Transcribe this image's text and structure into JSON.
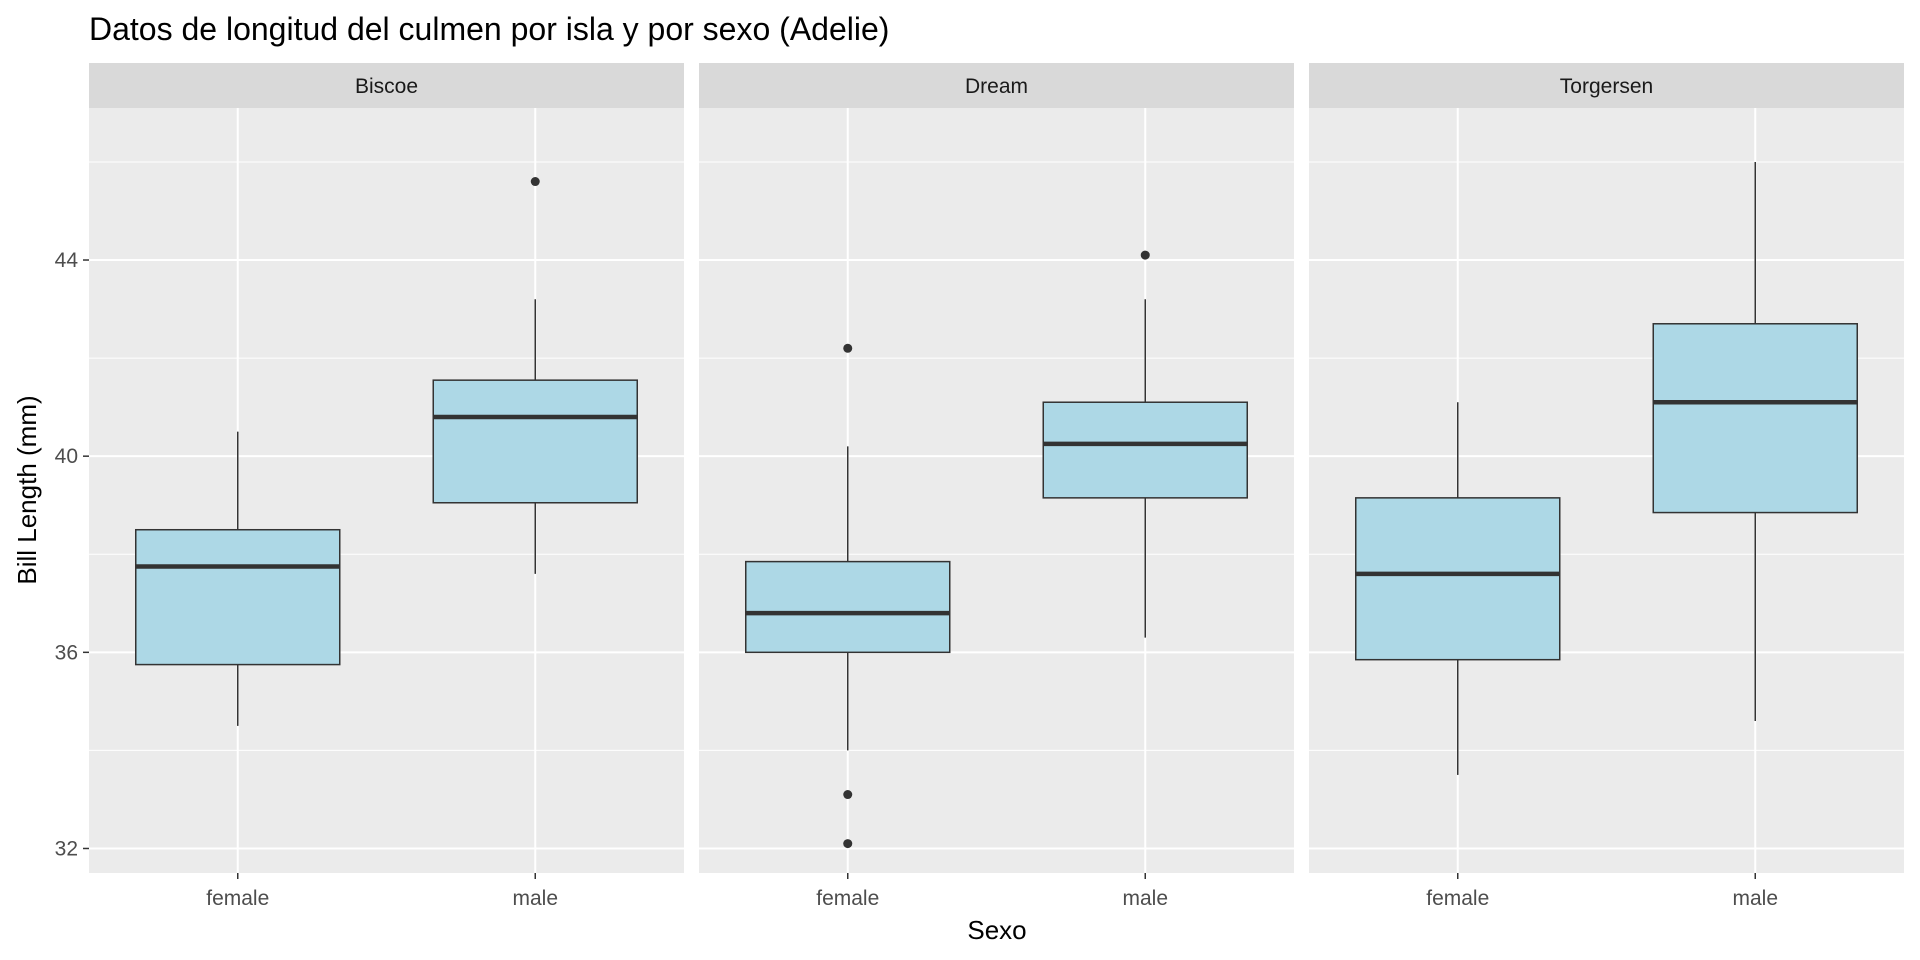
{
  "chart_data": {
    "type": "boxplot",
    "title": "Datos de longitud del culmen por isla y por sexo (Adelie)",
    "xlabel": "Sexo",
    "ylabel": "Bill Length (mm)",
    "ylim": [
      31.5,
      47.1
    ],
    "y_ticks": [
      32,
      36,
      40,
      44
    ],
    "y_tick_labels": [
      "32",
      "36",
      "40",
      "44"
    ],
    "categories": [
      "female",
      "male"
    ],
    "grid": true,
    "legend": "none",
    "colors": {
      "box_fill": "#add8e6",
      "box_stroke": "#333333",
      "panel_bg": "#ebebeb",
      "strip_bg": "#d9d9d9",
      "grid_major": "#ffffff",
      "outlier": "#333333"
    },
    "facets": [
      {
        "name": "Biscoe",
        "boxes": [
          {
            "category": "female",
            "lower_whisker": 34.5,
            "q1": 35.75,
            "median": 37.75,
            "q3": 38.5,
            "upper_whisker": 40.5,
            "outliers": []
          },
          {
            "category": "male",
            "lower_whisker": 37.6,
            "q1": 39.05,
            "median": 40.8,
            "q3": 41.55,
            "upper_whisker": 43.2,
            "outliers": [
              45.6
            ]
          }
        ]
      },
      {
        "name": "Dream",
        "boxes": [
          {
            "category": "female",
            "lower_whisker": 34.0,
            "q1": 36.0,
            "median": 36.8,
            "q3": 37.85,
            "upper_whisker": 40.2,
            "outliers": [
              42.2,
              33.1,
              32.1
            ]
          },
          {
            "category": "male",
            "lower_whisker": 36.3,
            "q1": 39.15,
            "median": 40.25,
            "q3": 41.1,
            "upper_whisker": 43.2,
            "outliers": [
              44.1
            ]
          }
        ]
      },
      {
        "name": "Torgersen",
        "boxes": [
          {
            "category": "female",
            "lower_whisker": 33.5,
            "q1": 35.85,
            "median": 37.6,
            "q3": 39.15,
            "upper_whisker": 41.1,
            "outliers": []
          },
          {
            "category": "male",
            "lower_whisker": 34.6,
            "q1": 38.85,
            "median": 41.1,
            "q3": 42.7,
            "upper_whisker": 46.0,
            "outliers": []
          }
        ]
      }
    ]
  }
}
